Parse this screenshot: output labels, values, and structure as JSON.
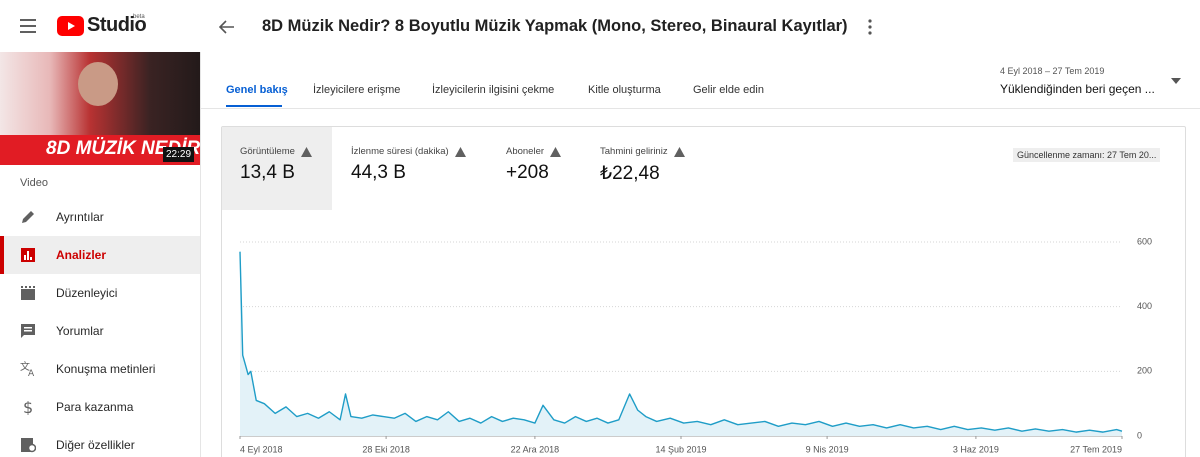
{
  "header": {
    "logo": "Studio",
    "beta": "beta",
    "video_title": "8D Müzik Nedir? 8 Boyutlu Müzik Yapmak (Mono, Stereo, Binaural Kayıtlar)"
  },
  "sidebar": {
    "thumbnail_text": "8D MÜZİK NEDİR?",
    "duration": "22:29",
    "section": "Video",
    "items": [
      "Ayrıntılar",
      "Analizler",
      "Düzenleyici",
      "Yorumlar",
      "Konuşma metinleri",
      "Para kazanma",
      "Diğer özellikler"
    ]
  },
  "tabs": [
    "Genel bakış",
    "İzleyicilere erişme",
    "İzleyicilerin ilgisini çekme",
    "Kitle oluşturma",
    "Gelir elde edin"
  ],
  "date_range": {
    "dates": "4 Eyl 2018 – 27 Tem 2019",
    "label": "Yüklendiğinden beri geçen ..."
  },
  "metrics": [
    {
      "label": "Görüntüleme",
      "value": "13,4 B"
    },
    {
      "label": "İzlenme süresi (dakika)",
      "value": "44,3 B"
    },
    {
      "label": "Aboneler",
      "value": "+208"
    },
    {
      "label": "Tahmini geliriniz",
      "value": "₺22,48"
    }
  ],
  "updated": "Güncellenme zamanı: 27 Tem 20...",
  "chart_data": {
    "type": "line",
    "color": "#1f9dc7",
    "fill": "#e3f2f8",
    "grid": true,
    "x": [
      "2018-09-04",
      "2018-09-05",
      "2018-09-06",
      "2018-09-07",
      "2018-09-08",
      "2018-09-10",
      "2018-09-13",
      "2018-09-17",
      "2018-09-21",
      "2018-09-25",
      "2018-09-29",
      "2018-10-03",
      "2018-10-07",
      "2018-10-11",
      "2018-10-13",
      "2018-10-15",
      "2018-10-19",
      "2018-10-23",
      "2018-10-27",
      "2018-10-31",
      "2018-11-04",
      "2018-11-08",
      "2018-11-12",
      "2018-11-16",
      "2018-11-20",
      "2018-11-24",
      "2018-11-28",
      "2018-12-02",
      "2018-12-06",
      "2018-12-10",
      "2018-12-14",
      "2018-12-18",
      "2018-12-22",
      "2018-12-25",
      "2018-12-29",
      "2019-01-02",
      "2019-01-06",
      "2019-01-10",
      "2019-01-14",
      "2019-01-18",
      "2019-01-22",
      "2019-01-26",
      "2019-01-29",
      "2019-02-01",
      "2019-02-05",
      "2019-02-10",
      "2019-02-15",
      "2019-02-20",
      "2019-02-25",
      "2019-03-02",
      "2019-03-07",
      "2019-03-12",
      "2019-03-17",
      "2019-03-22",
      "2019-03-27",
      "2019-04-01",
      "2019-04-06",
      "2019-04-11",
      "2019-04-16",
      "2019-04-21",
      "2019-04-26",
      "2019-05-01",
      "2019-05-06",
      "2019-05-11",
      "2019-05-16",
      "2019-05-21",
      "2019-05-26",
      "2019-05-31",
      "2019-06-05",
      "2019-06-10",
      "2019-06-15",
      "2019-06-20",
      "2019-06-25",
      "2019-06-30",
      "2019-07-05",
      "2019-07-10",
      "2019-07-15",
      "2019-07-20",
      "2019-07-25",
      "2019-07-27"
    ],
    "values": [
      570,
      250,
      220,
      190,
      200,
      110,
      100,
      70,
      90,
      60,
      70,
      55,
      75,
      50,
      130,
      60,
      55,
      65,
      60,
      55,
      70,
      45,
      60,
      50,
      75,
      45,
      55,
      40,
      60,
      45,
      55,
      50,
      40,
      95,
      50,
      40,
      60,
      45,
      55,
      40,
      50,
      130,
      80,
      60,
      45,
      55,
      40,
      45,
      35,
      50,
      35,
      40,
      45,
      30,
      40,
      35,
      45,
      30,
      40,
      30,
      35,
      25,
      35,
      25,
      30,
      20,
      30,
      20,
      25,
      18,
      25,
      15,
      22,
      15,
      20,
      12,
      18,
      12,
      20,
      15
    ],
    "xlim": [
      "2018-09-04",
      "2019-07-27"
    ],
    "xticks": [
      {
        "value": "2018-09-04",
        "label": "4 Eyl 2018"
      },
      {
        "value": "2018-10-28",
        "label": "28 Eki 2018"
      },
      {
        "value": "2018-12-22",
        "label": "22 Ara 2018"
      },
      {
        "value": "2019-02-14",
        "label": "14 Şub 2019"
      },
      {
        "value": "2019-04-09",
        "label": "9 Nis 2019"
      },
      {
        "value": "2019-06-03",
        "label": "3 Haz 2019"
      },
      {
        "value": "2019-07-27",
        "label": "27 Tem 2019"
      }
    ],
    "ylim": [
      0,
      600
    ],
    "yticks": [
      0,
      200,
      400,
      600
    ]
  }
}
